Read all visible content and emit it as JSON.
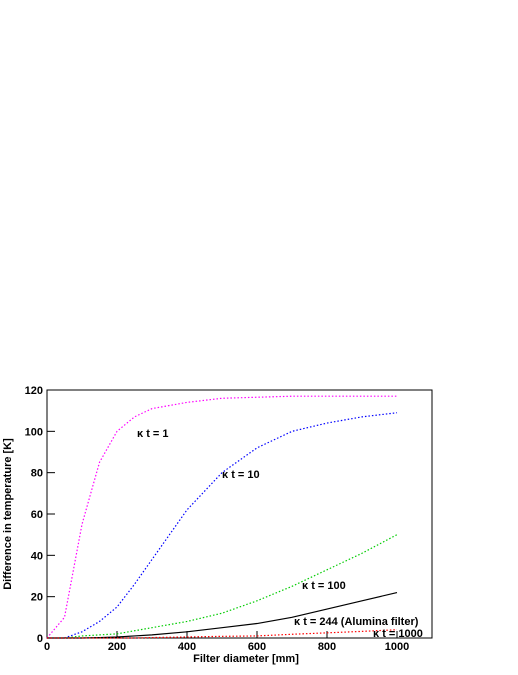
{
  "chart_data": {
    "type": "line",
    "xlabel": "Filter diameter [mm]",
    "ylabel": "Difference in temperature [K]",
    "x": [
      0,
      50,
      100,
      150,
      200,
      250,
      300,
      400,
      500,
      600,
      700,
      800,
      900,
      1000
    ],
    "series": [
      {
        "name": "κ t = 1",
        "color": "#ff00ff",
        "style": "dotted",
        "values": [
          0,
          10,
          55,
          85,
          100,
          107,
          111,
          114,
          116,
          116.5,
          117,
          117,
          117,
          117
        ]
      },
      {
        "name": "κ t = 10",
        "color": "#0000ff",
        "style": "dotted",
        "values": [
          0,
          0,
          3,
          8,
          15,
          26,
          38,
          62,
          80,
          92,
          100,
          104,
          107,
          109
        ]
      },
      {
        "name": "κ t = 100",
        "color": "#00cc00",
        "style": "dotted",
        "values": [
          0,
          0,
          1,
          1.5,
          2,
          3.5,
          5,
          8,
          12,
          18,
          25,
          33,
          41,
          50
        ]
      },
      {
        "name": "κ t = 244 (Alumina filter)",
        "color": "#000000",
        "style": "solid",
        "values": [
          0,
          0,
          0,
          0.2,
          0.5,
          1,
          1.5,
          3,
          5,
          7,
          10,
          14,
          18,
          22
        ]
      },
      {
        "name": "κ t = 1000",
        "color": "#ff0000",
        "style": "dotted",
        "values": [
          0,
          0,
          0,
          0,
          0,
          0,
          0.2,
          0.5,
          0.8,
          1,
          1.8,
          2.5,
          3.2,
          4
        ]
      }
    ],
    "xlim": [
      0,
      1100
    ],
    "ylim": [
      0,
      120
    ],
    "xticks": [
      0,
      200,
      400,
      600,
      800,
      1000
    ],
    "yticks": [
      0,
      20,
      40,
      60,
      80,
      100,
      120
    ]
  }
}
